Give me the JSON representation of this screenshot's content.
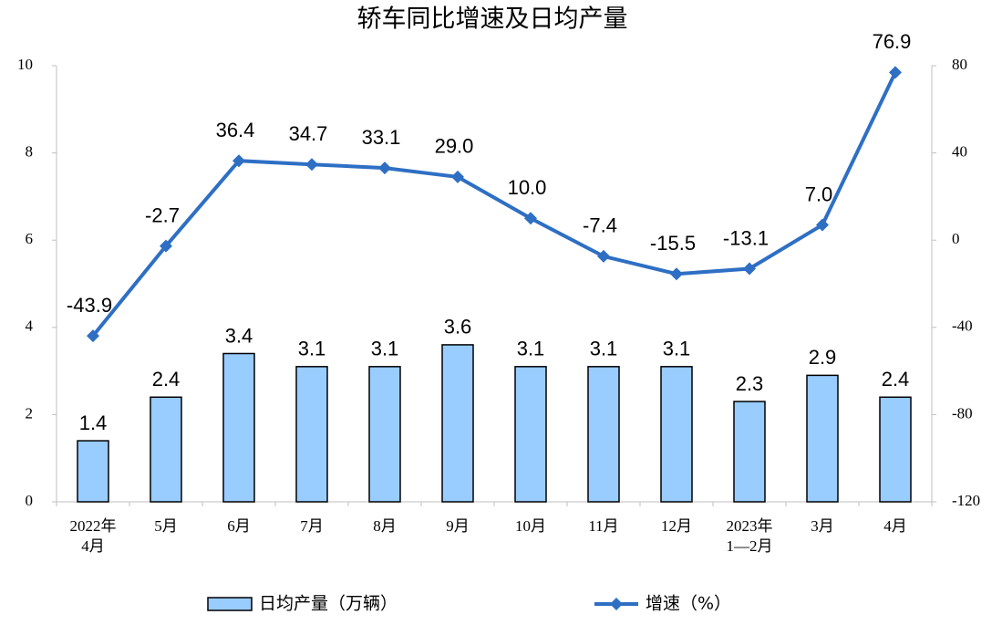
{
  "chart_data": {
    "type": "combo",
    "title": "轿车同比增速及日均产量",
    "categories": [
      [
        "2022年",
        "4月"
      ],
      [
        "5月"
      ],
      [
        "6月"
      ],
      [
        "7月"
      ],
      [
        "8月"
      ],
      [
        "9月"
      ],
      [
        "10月"
      ],
      [
        "11月"
      ],
      [
        "12月"
      ],
      [
        "2023年",
        "1—2月"
      ],
      [
        "3月"
      ],
      [
        "4月"
      ]
    ],
    "series": [
      {
        "name": "日均产量（万辆）",
        "type": "bar",
        "color": "#99ccff",
        "axis": "y",
        "values": [
          1.4,
          2.4,
          3.4,
          3.1,
          3.1,
          3.6,
          3.1,
          3.1,
          3.1,
          2.3,
          2.9,
          2.4
        ]
      },
      {
        "name": "增速（%）",
        "type": "line",
        "color": "#2e6fc4",
        "axis": "y2",
        "values": [
          -43.9,
          -2.7,
          36.4,
          34.7,
          33.1,
          29.0,
          10.0,
          -7.4,
          -15.5,
          -13.1,
          7.0,
          76.9
        ],
        "value_labels": [
          "-43.9",
          "-2.7",
          "36.4",
          "34.7",
          "33.1",
          "29.0",
          "10.0",
          "-7.4",
          "-15.5",
          "-13.1",
          "7.0",
          "76.9"
        ]
      }
    ],
    "ylim": [
      0,
      10
    ],
    "yticks": [
      0,
      2,
      4,
      6,
      8,
      10
    ],
    "y2lim": [
      -120,
      80
    ],
    "y2ticks": [
      -120,
      -80,
      -40,
      0,
      40,
      80
    ],
    "grid": false
  }
}
